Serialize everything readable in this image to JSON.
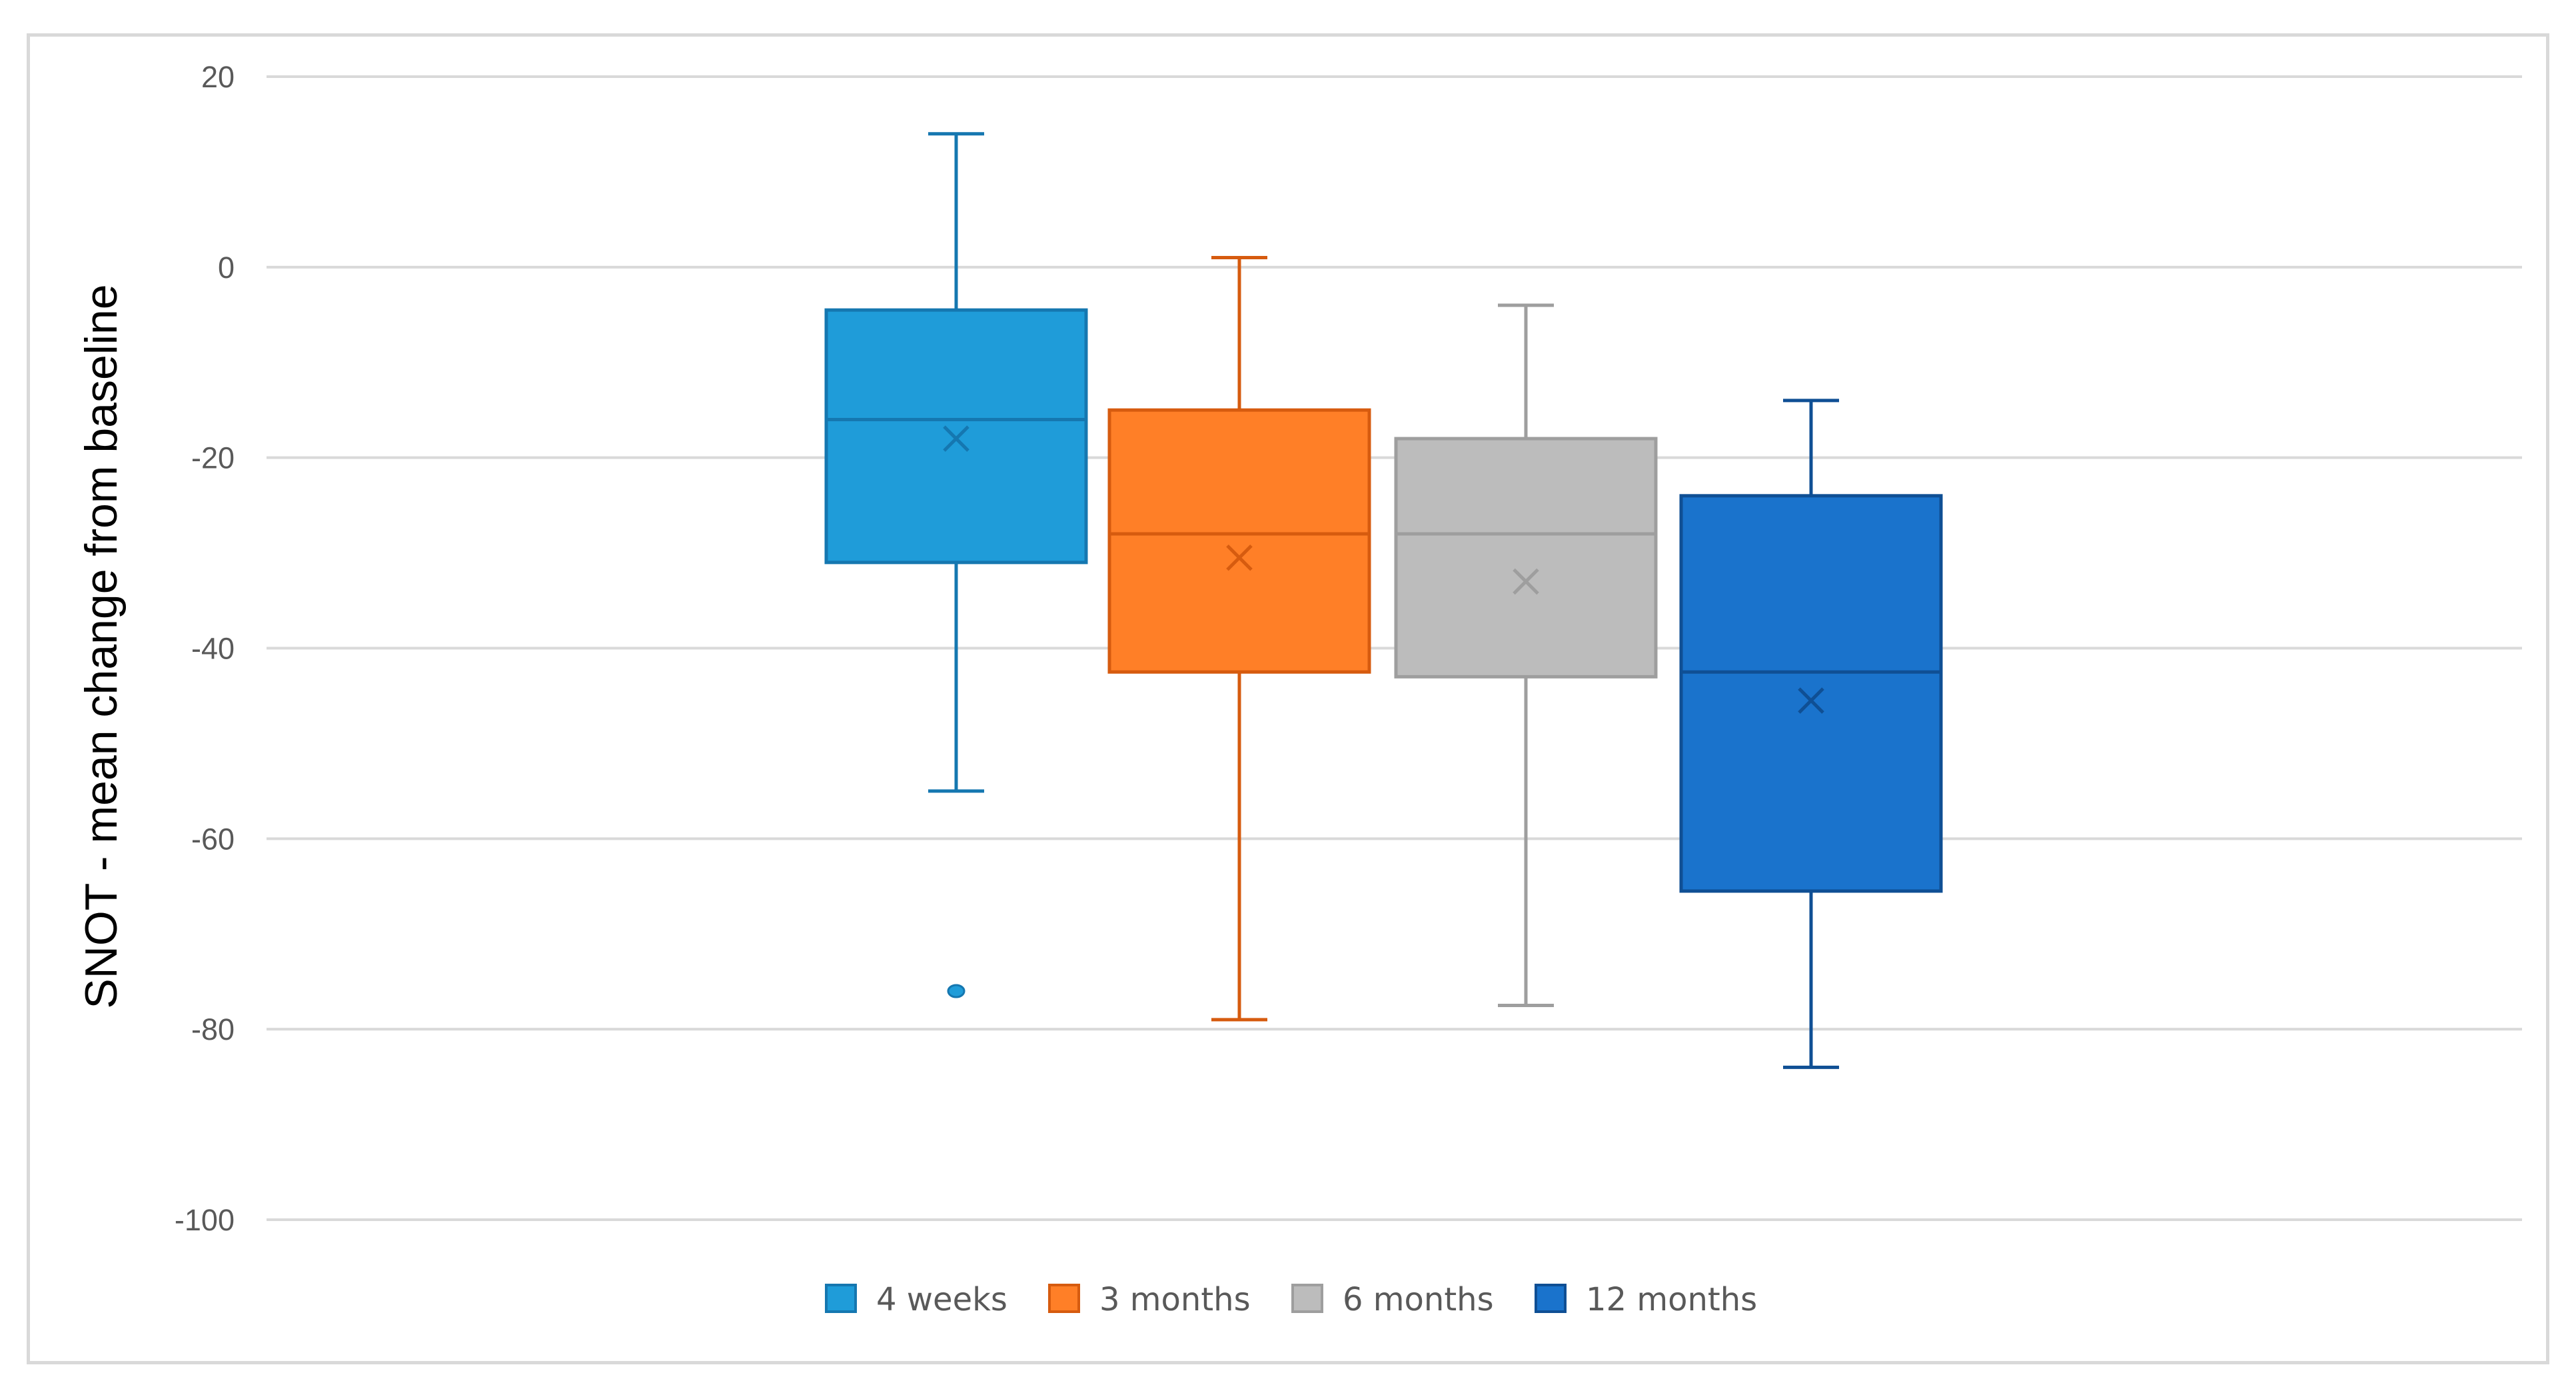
{
  "chart_data": {
    "type": "box",
    "ylabel": "SNOT - mean change from baseline",
    "xlabel": "",
    "title": "",
    "ylim": [
      -100,
      20
    ],
    "yticks": [
      20,
      0,
      -20,
      -40,
      -60,
      -80,
      -100
    ],
    "grid": true,
    "legend_position": "bottom",
    "series": [
      {
        "name": "4 weeks",
        "color": "#1f9cd9",
        "edge": "#1577b0",
        "min": -55,
        "q1": -31,
        "median": -16,
        "q3": -4.5,
        "max": 14,
        "mean": -18,
        "outliers": [
          -76
        ]
      },
      {
        "name": "3 months",
        "color": "#ff7f27",
        "edge": "#d65b0f",
        "min": -79,
        "q1": -42.5,
        "median": -28,
        "q3": -15,
        "max": 1,
        "mean": -30.5,
        "outliers": []
      },
      {
        "name": "6 months",
        "color": "#bcbcbc",
        "edge": "#9e9e9e",
        "min": -77.5,
        "q1": -43,
        "median": -28,
        "q3": -18,
        "max": -4,
        "mean": -33,
        "outliers": []
      },
      {
        "name": "12 months",
        "color": "#1a73cc",
        "edge": "#0f4f94",
        "min": -84,
        "q1": -65.5,
        "median": -42.5,
        "q3": -24,
        "max": -14,
        "mean": -45.5,
        "outliers": []
      }
    ]
  }
}
